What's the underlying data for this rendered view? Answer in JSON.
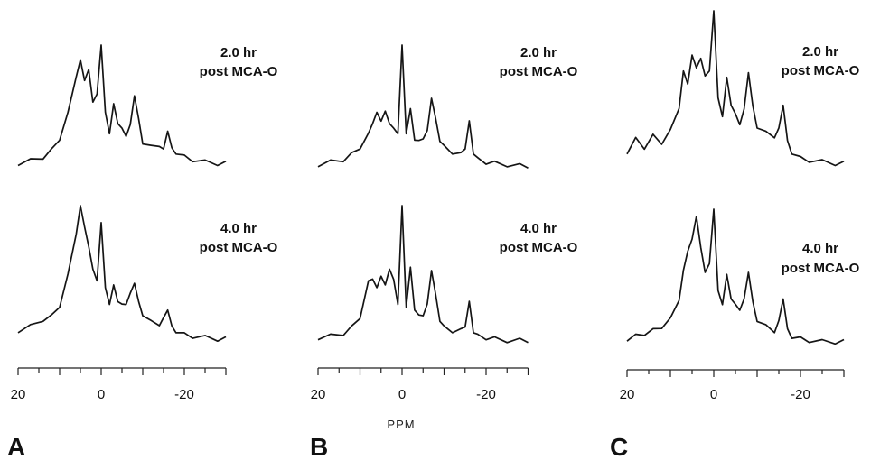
{
  "figure": {
    "axis_title": "PPM"
  },
  "chart_data": [
    {
      "type": "line",
      "panel": "A",
      "x_axis": {
        "direction": "reversed",
        "range": [
          20,
          -30
        ],
        "tick_labels": [
          "20",
          "0",
          "-20"
        ],
        "ticks": [
          20,
          15,
          10,
          5,
          0,
          -5,
          -10,
          -15,
          -20,
          -25,
          -30
        ]
      },
      "series": [
        {
          "annotation": [
            "2.0 hr",
            "post MCA-O"
          ],
          "x": [
            20,
            17,
            14,
            12,
            10,
            8,
            6,
            5,
            4,
            3,
            2,
            1,
            0,
            -1,
            -2,
            -3,
            -4,
            -5,
            -6,
            -7,
            -8,
            -9,
            -10,
            -12,
            -14,
            -15,
            -16,
            -17,
            -18,
            -20,
            -22,
            -25,
            -28,
            -30
          ],
          "y": [
            0.05,
            0.07,
            0.1,
            0.15,
            0.25,
            0.45,
            0.75,
            0.88,
            0.72,
            0.8,
            0.55,
            0.6,
            1.0,
            0.45,
            0.3,
            0.52,
            0.38,
            0.32,
            0.28,
            0.35,
            0.6,
            0.4,
            0.22,
            0.18,
            0.2,
            0.15,
            0.32,
            0.16,
            0.14,
            0.1,
            0.08,
            0.06,
            0.05,
            0.05
          ]
        },
        {
          "annotation": [
            "4.0 hr",
            "post MCA-O"
          ],
          "x": [
            20,
            17,
            14,
            12,
            10,
            8,
            6,
            5,
            4,
            3,
            2,
            1,
            0,
            -1,
            -2,
            -3,
            -4,
            -5,
            -6,
            -7,
            -8,
            -9,
            -10,
            -12,
            -14,
            -15,
            -16,
            -17,
            -18,
            -20,
            -22,
            -25,
            -28,
            -30
          ],
          "y": [
            0.1,
            0.13,
            0.18,
            0.2,
            0.28,
            0.5,
            0.8,
            1.0,
            0.85,
            0.7,
            0.55,
            0.45,
            0.88,
            0.4,
            0.3,
            0.42,
            0.32,
            0.28,
            0.3,
            0.36,
            0.45,
            0.3,
            0.22,
            0.16,
            0.15,
            0.18,
            0.26,
            0.12,
            0.1,
            0.07,
            0.06,
            0.05,
            0.04,
            0.04
          ]
        }
      ]
    },
    {
      "type": "line",
      "panel": "B",
      "x_axis": {
        "direction": "reversed",
        "range": [
          20,
          -30
        ],
        "tick_labels": [
          "20",
          "0",
          "-20"
        ],
        "ticks": [
          20,
          15,
          10,
          5,
          0,
          -5,
          -10,
          -15,
          -20,
          -25,
          -30
        ]
      },
      "series": [
        {
          "annotation": [
            "2.0 hr",
            "post MCA-O"
          ],
          "x": [
            20,
            17,
            14,
            12,
            10,
            8,
            7,
            6,
            5,
            4,
            3,
            2,
            1,
            0,
            -1,
            -2,
            -3,
            -4,
            -5,
            -6,
            -7,
            -8,
            -9,
            -10,
            -12,
            -14,
            -15,
            -16,
            -17,
            -18,
            -20,
            -22,
            -25,
            -28,
            -30
          ],
          "y": [
            0.04,
            0.06,
            0.08,
            0.12,
            0.18,
            0.28,
            0.38,
            0.45,
            0.4,
            0.46,
            0.38,
            0.32,
            0.3,
            1.0,
            0.3,
            0.48,
            0.25,
            0.22,
            0.26,
            0.3,
            0.58,
            0.4,
            0.24,
            0.18,
            0.14,
            0.12,
            0.18,
            0.38,
            0.14,
            0.08,
            0.06,
            0.05,
            0.04,
            0.03,
            0.03
          ]
        },
        {
          "annotation": [
            "4.0 hr",
            "post MCA-O"
          ],
          "x": [
            20,
            17,
            14,
            12,
            10,
            8,
            7,
            6,
            5,
            4,
            3,
            2,
            1,
            0,
            -1,
            -2,
            -3,
            -4,
            -5,
            -6,
            -7,
            -8,
            -9,
            -10,
            -12,
            -14,
            -15,
            -16,
            -17,
            -18,
            -20,
            -22,
            -25,
            -28,
            -30
          ],
          "y": [
            0.05,
            0.06,
            0.08,
            0.12,
            0.2,
            0.45,
            0.48,
            0.4,
            0.5,
            0.42,
            0.55,
            0.46,
            0.3,
            1.0,
            0.28,
            0.55,
            0.26,
            0.2,
            0.22,
            0.28,
            0.54,
            0.35,
            0.18,
            0.12,
            0.1,
            0.1,
            0.14,
            0.3,
            0.1,
            0.06,
            0.05,
            0.04,
            0.03,
            0.03,
            0.03
          ]
        }
      ]
    },
    {
      "type": "line",
      "panel": "C",
      "x_axis": {
        "direction": "reversed",
        "range": [
          20,
          -30
        ],
        "tick_labels": [
          "20",
          "0",
          "-20"
        ],
        "ticks": [
          20,
          15,
          10,
          5,
          0,
          -5,
          -10,
          -15,
          -20,
          -25,
          -30
        ]
      },
      "series": [
        {
          "annotation": [
            "2.0 hr",
            "post MCA-O"
          ],
          "x": [
            20,
            18,
            16,
            14,
            12,
            10,
            8,
            7,
            6,
            5,
            4,
            3,
            2,
            1,
            0,
            -1,
            -2,
            -3,
            -4,
            -5,
            -6,
            -7,
            -8,
            -9,
            -10,
            -12,
            -14,
            -15,
            -16,
            -17,
            -18,
            -20,
            -22,
            -25,
            -28,
            -30
          ],
          "y": [
            0.12,
            0.2,
            0.15,
            0.22,
            0.18,
            0.25,
            0.4,
            0.62,
            0.55,
            0.72,
            0.65,
            0.7,
            0.6,
            0.62,
            1.0,
            0.45,
            0.35,
            0.58,
            0.42,
            0.35,
            0.3,
            0.38,
            0.62,
            0.4,
            0.28,
            0.24,
            0.22,
            0.26,
            0.42,
            0.18,
            0.12,
            0.08,
            0.07,
            0.06,
            0.05,
            0.05
          ]
        },
        {
          "annotation": [
            "4.0 hr",
            "post MCA-O"
          ],
          "x": [
            20,
            18,
            16,
            14,
            12,
            10,
            8,
            7,
            6,
            5,
            4,
            3,
            2,
            1,
            0,
            -1,
            -2,
            -3,
            -4,
            -5,
            -6,
            -7,
            -8,
            -9,
            -10,
            -12,
            -14,
            -15,
            -16,
            -17,
            -18,
            -20,
            -22,
            -25,
            -28,
            -30
          ],
          "y": [
            0.06,
            0.08,
            0.1,
            0.12,
            0.15,
            0.2,
            0.35,
            0.55,
            0.7,
            0.78,
            0.95,
            0.72,
            0.55,
            0.6,
            1.0,
            0.4,
            0.32,
            0.52,
            0.36,
            0.3,
            0.28,
            0.34,
            0.55,
            0.32,
            0.2,
            0.15,
            0.12,
            0.18,
            0.36,
            0.12,
            0.08,
            0.06,
            0.05,
            0.04,
            0.04,
            0.04
          ]
        }
      ]
    }
  ]
}
